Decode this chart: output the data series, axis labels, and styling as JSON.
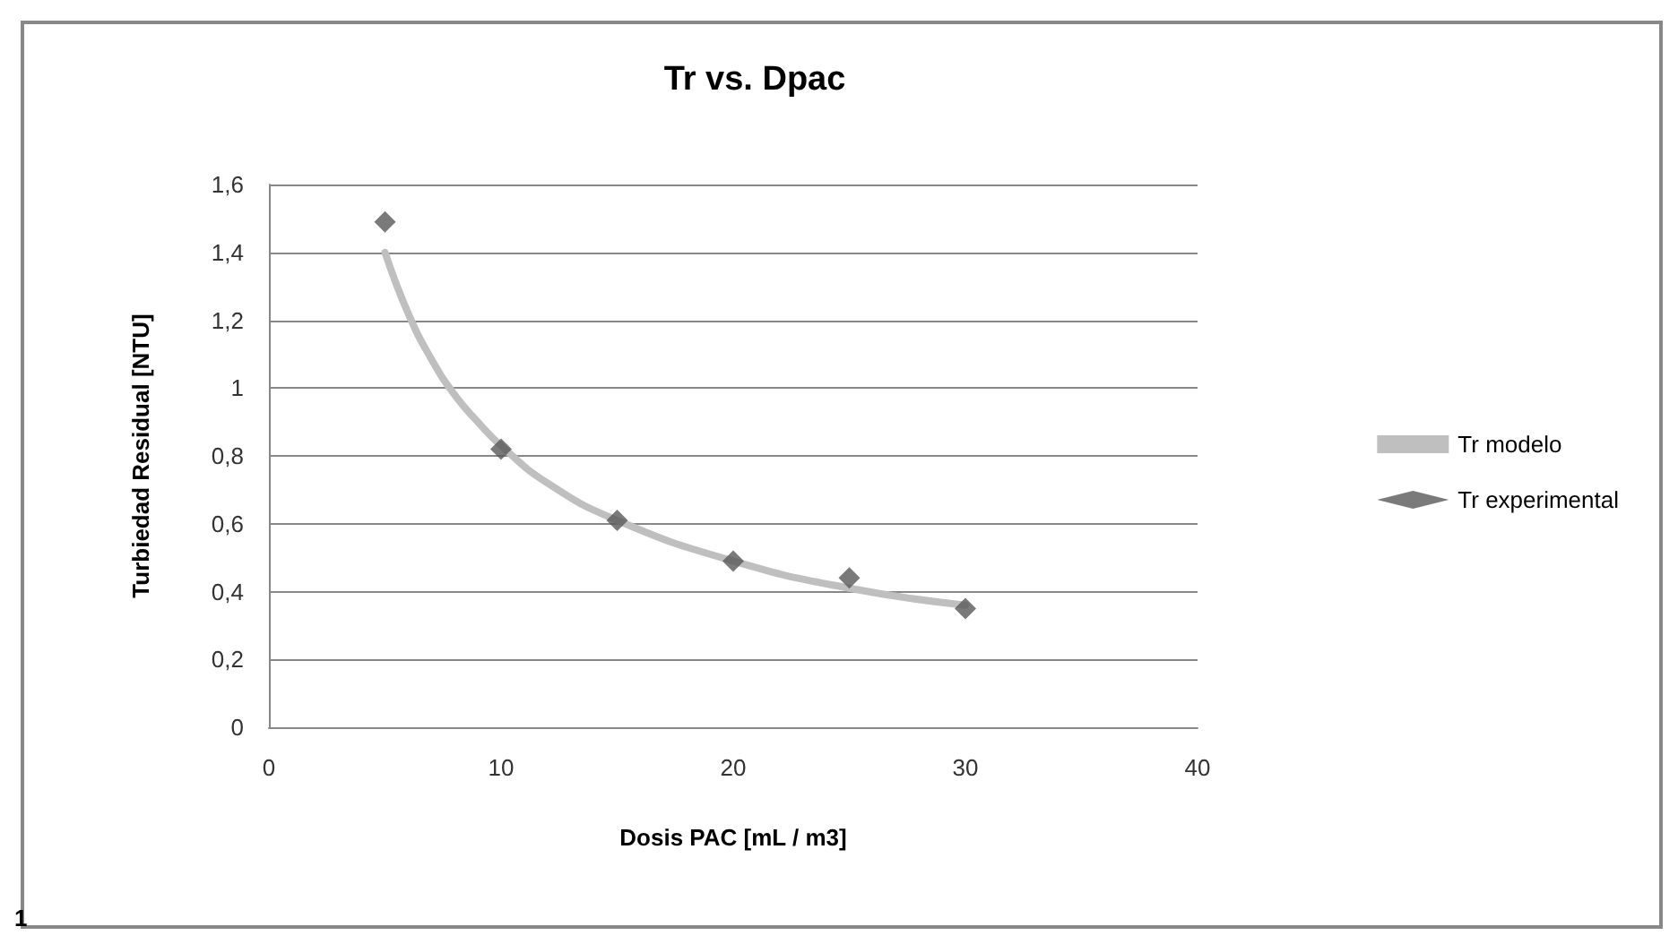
{
  "chart_data": {
    "type": "line",
    "title": "Tr vs. Dpac",
    "xlabel": "Dosis PAC [mL / m3]",
    "ylabel": "Turbiedad Residual [NTU]",
    "series": [
      {
        "name": "Tr modelo",
        "color": "#bfbfbf",
        "marker": "none",
        "x": [
          5,
          6,
          7,
          8,
          9,
          10,
          12,
          15,
          20,
          25,
          30
        ],
        "values": [
          1.4,
          1.22,
          1.085,
          0.98,
          0.9,
          0.83,
          0.72,
          0.61,
          0.49,
          0.41,
          0.36
        ]
      },
      {
        "name": "Tr experimental",
        "type": "scatter",
        "color": "#595959",
        "marker": "diamond",
        "x": [
          5,
          10,
          15,
          20,
          25,
          30
        ],
        "values": [
          1.49,
          0.82,
          0.61,
          0.49,
          0.44,
          0.35
        ]
      }
    ],
    "xlim": [
      0,
      40
    ],
    "xticks": [
      0,
      10,
      20,
      30,
      40
    ],
    "ylim": [
      0,
      1.6
    ],
    "yticks": [
      0,
      {
        "value": 0.2,
        "label": "0,2"
      },
      {
        "value": 0.4,
        "label": "0,4"
      },
      {
        "value": 0.6,
        "label": "0,6"
      },
      {
        "value": 0.8,
        "label": "0,8"
      },
      1,
      {
        "value": 1.2,
        "label": "1,2"
      },
      {
        "value": 1.4,
        "label": "1,4"
      },
      {
        "value": 1.6,
        "label": "1,6"
      }
    ],
    "grid": "y",
    "legend": "right",
    "annotations": [
      "1"
    ]
  }
}
